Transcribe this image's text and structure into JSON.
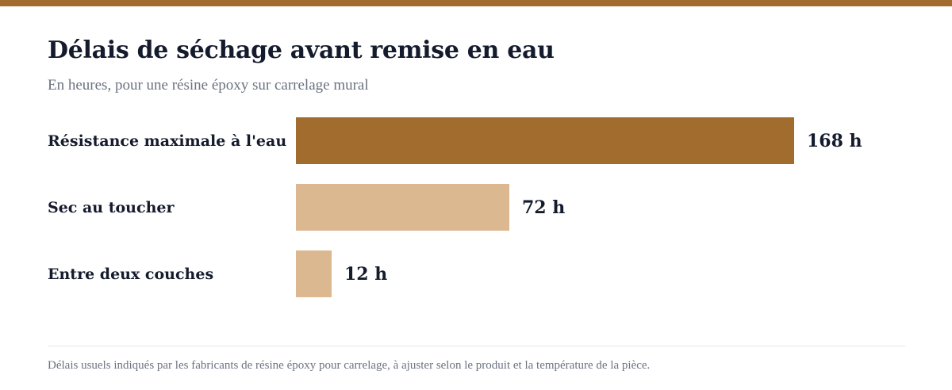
{
  "colors": {
    "accent": "#a36c2f",
    "bar_light": "#dbb890",
    "text_dark": "#141b2d",
    "text_muted": "#6b7280",
    "divider": "#e5e7eb"
  },
  "header": {
    "title": "Délais de séchage avant remise en eau",
    "subtitle": "En heures, pour une résine époxy sur carrelage mural"
  },
  "chart_data": {
    "type": "bar",
    "orientation": "horizontal",
    "title": "Délais de séchage avant remise en eau",
    "subtitle": "En heures, pour une résine époxy sur carrelage mural",
    "categories": [
      "Résistance maximale à l'eau",
      "Sec au toucher",
      "Entre deux couches"
    ],
    "values": [
      168,
      72,
      12
    ],
    "value_labels": [
      "168 h",
      "72 h",
      "12 h"
    ],
    "highlight_index": 0,
    "xlim": [
      0,
      168
    ],
    "grid": false,
    "unit": "h"
  },
  "footer": {
    "note": "Délais usuels indiqués par les fabricants de résine époxy pour carrelage, à ajuster selon le produit et la température de la pièce."
  }
}
